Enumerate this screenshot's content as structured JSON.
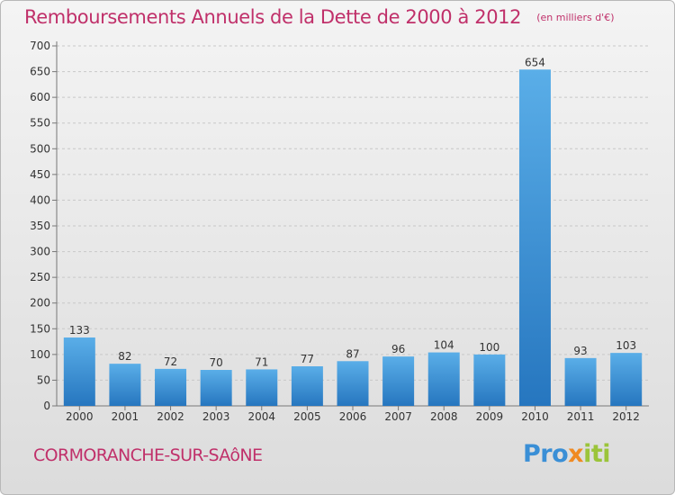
{
  "header": {
    "title": "Remboursements Annuels de la Dette de 2000 à 2012",
    "unit": "(en milliers d'€)"
  },
  "footer": {
    "city": "CORMORANCHE-SUR-SAôNE",
    "logo": {
      "part1": "Pro",
      "part2": "x",
      "part3": "iti"
    }
  },
  "colors": {
    "bar_top": "#5aaee8",
    "bar_bottom": "#2676bf",
    "title": "#c0306a"
  },
  "chart_data": {
    "type": "bar",
    "title": "Remboursements Annuels de la Dette de 2000 à 2012",
    "ylabel": "",
    "xlabel": "",
    "categories": [
      "2000",
      "2001",
      "2002",
      "2003",
      "2004",
      "2005",
      "2006",
      "2007",
      "2008",
      "2009",
      "2010",
      "2011",
      "2012"
    ],
    "values": [
      133,
      82,
      72,
      70,
      71,
      77,
      87,
      96,
      104,
      100,
      654,
      93,
      103
    ],
    "ylim": [
      0,
      700
    ],
    "yticks": [
      0,
      50,
      100,
      150,
      200,
      250,
      300,
      350,
      400,
      450,
      500,
      550,
      600,
      650,
      700
    ],
    "grid": true
  }
}
